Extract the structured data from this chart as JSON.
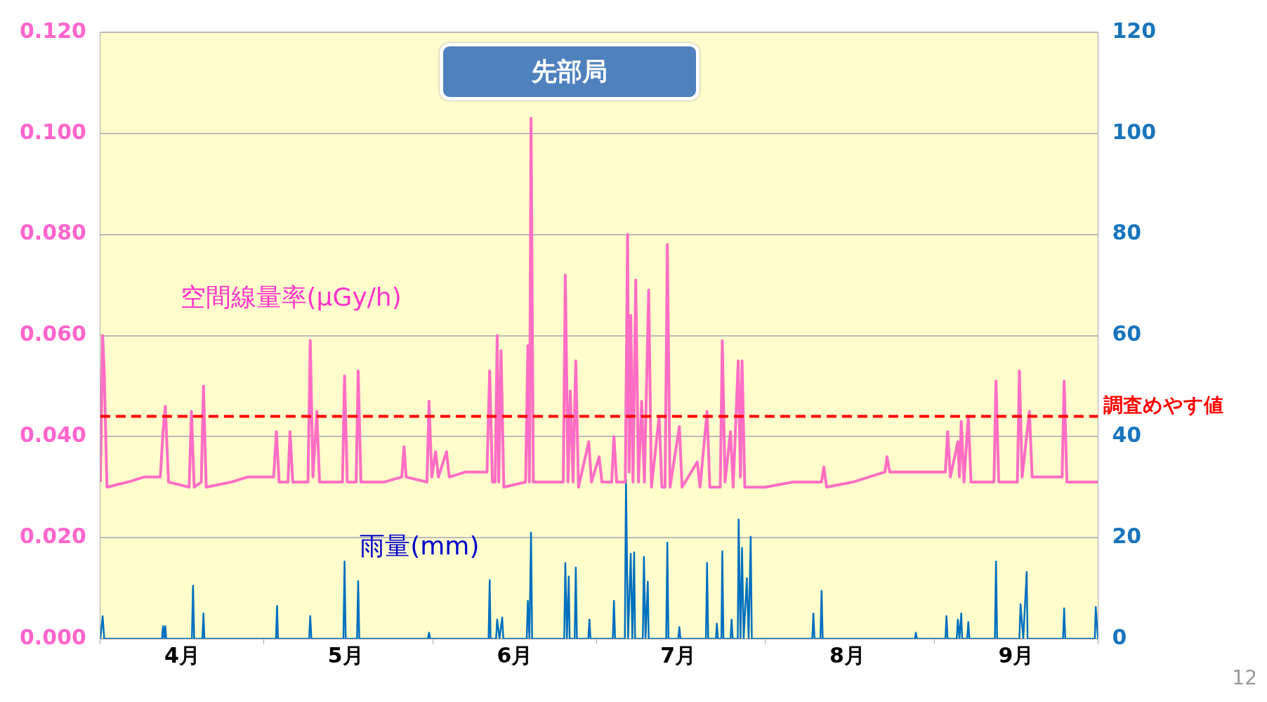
{
  "chart_data": {
    "type": "line",
    "title": "先部局",
    "xlim": [
      "--04-01",
      "--10-01"
    ],
    "xticks": [
      {
        "value": "--04-01",
        "label": null
      },
      {
        "value": "--04-16",
        "label": "4月"
      },
      {
        "value": "--05-01",
        "label": null
      },
      {
        "value": "--05-16",
        "label": "5月"
      },
      {
        "value": "--06-01",
        "label": null
      },
      {
        "value": "--06-16",
        "label": "6月"
      },
      {
        "value": "--07-01",
        "label": null
      },
      {
        "value": "--07-16",
        "label": "7月"
      },
      {
        "value": "--08-01",
        "label": null
      },
      {
        "value": "--08-16",
        "label": "8月"
      },
      {
        "value": "--09-01",
        "label": null
      },
      {
        "value": "--09-16",
        "label": "9月"
      },
      {
        "value": "--10-01",
        "label": null
      }
    ],
    "ylim": [
      0,
      0.12
    ],
    "yticks": [
      {
        "value": 0,
        "label": "0.000"
      },
      {
        "value": 0.02,
        "label": "0.020"
      },
      {
        "value": 0.04,
        "label": "0.040"
      },
      {
        "value": 0.06,
        "label": "0.060"
      },
      {
        "value": 0.08,
        "label": "0.080"
      },
      {
        "value": 0.1,
        "label": "0.100"
      },
      {
        "value": 0.12,
        "label": "0.120"
      }
    ],
    "y2lim": [
      0,
      120
    ],
    "y2ticks": [
      0,
      20,
      40,
      60,
      80,
      100,
      120
    ],
    "grid": "y",
    "legend": false,
    "marker": "none",
    "line_style": "solid",
    "series": [
      {
        "name": "空間線量率(μGy/h)",
        "color": "#ff6ec4",
        "axis": "y",
        "x": [
          "--04-01",
          "--04-01T10:00",
          "--04-01T17:00",
          "--04-02T05:00",
          "--04-06",
          "--04-09",
          "--04-12",
          "--04-12T12:00",
          "--04-12T22:00",
          "--04-13T12:00",
          "--04-17T07:00",
          "--04-17T17:00",
          "--04-18T05:00",
          "--04-19T12:00",
          "--04-19T22:00",
          "--04-20T10:00",
          "--04-25",
          "--04-28",
          "--05-02T19:00",
          "--05-03T07:00",
          "--05-03T19:00",
          "--05-05T10:00",
          "--05-05T19:00",
          "--05-06T07:00",
          "--05-09T02:00",
          "--05-09T12:00",
          "--05-10",
          "--05-10T17:00",
          "--05-11T05:00",
          "--05-15T10:00",
          "--05-15T19:00",
          "--05-16T07:00",
          "--05-17T22:00",
          "--05-18T07:00",
          "--05-18T19:00",
          "--05-23",
          "--05-26T07:00",
          "--05-26T17:00",
          "--05-27T02:00",
          "--05-30T22:00",
          "--05-31T07:00",
          "--05-31T19:00",
          "--06-01T12:00",
          "--06-02",
          "--06-03T12:00",
          "--06-04",
          "--06-07",
          "--06-10T22:00",
          "--06-11T10:00",
          "--06-11T22:00",
          "--06-12T10:00",
          "--06-12T19:00",
          "--06-13T02:00",
          "--06-13T12:00",
          "--06-14",
          "--06-18",
          "--06-18T10:00",
          "--06-18T17:00",
          "--06-19",
          "--06-19T10:00",
          "--06-24T22:00",
          "--06-25T07:00",
          "--06-25T19:00",
          "--06-26T05:00",
          "--06-26T17:00",
          "--06-27T05:00",
          "--06-27T17:00",
          "--06-29T14:00",
          "--06-30T02:00",
          "--07-01T12:00",
          "--07-02",
          "--07-03T19:00",
          "--07-04T05:00",
          "--07-04T17:00",
          "--07-06T07:00",
          "--07-06T17:00",
          "--07-07",
          "--07-07T07:00",
          "--07-07T17:00",
          "--07-08T05:00",
          "--07-08T17:00",
          "--07-09T07:00",
          "--07-09T19:00",
          "--07-10T14:00",
          "--07-11T02:00",
          "--07-12T12:00",
          "--07-13",
          "--07-13T14:00",
          "--07-14",
          "--07-14T12:00",
          "--07-16T05:00",
          "--07-16T17:00",
          "--07-19T12:00",
          "--07-20",
          "--07-21T07:00",
          "--07-21T19:00",
          "--07-23T17:00",
          "--07-24T02:00",
          "--07-24T14:00",
          "--07-25T14:00",
          "--07-26T02:00",
          "--07-27",
          "--07-27T10:00",
          "--07-27T17:00",
          "--07-28T05:00",
          "--08-01",
          "--08-06",
          "--08-11T07:00",
          "--08-11T17:00",
          "--08-12T05:00",
          "--08-17",
          "--08-22T22:00",
          "--08-23T07:00",
          "--08-23T19:00",
          "--08-29",
          "--09-03",
          "--09-03T10:00",
          "--09-03T22:00",
          "--09-05T07:00",
          "--09-05T14:00",
          "--09-05T22:00",
          "--09-06T10:00",
          "--09-07T05:00",
          "--09-07T17:00",
          "--09-11T22:00",
          "--09-12T07:00",
          "--09-12T19:00",
          "--09-16T05:00",
          "--09-16T14:00",
          "--09-17T02:00",
          "--09-18T10:00",
          "--09-18T22:00",
          "--09-24T10:00",
          "--09-24T19:00",
          "--09-25T07:00",
          "--10-01"
        ],
        "values": [
          0.031,
          0.06,
          0.053,
          0.03,
          0.031,
          0.032,
          0.032,
          0.041,
          0.046,
          0.031,
          0.03,
          0.045,
          0.03,
          0.031,
          0.05,
          0.03,
          0.031,
          0.032,
          0.032,
          0.041,
          0.031,
          0.031,
          0.041,
          0.031,
          0.031,
          0.059,
          0.032,
          0.045,
          0.031,
          0.031,
          0.052,
          0.031,
          0.031,
          0.053,
          0.031,
          0.031,
          0.032,
          0.038,
          0.032,
          0.031,
          0.047,
          0.032,
          0.037,
          0.032,
          0.037,
          0.032,
          0.033,
          0.033,
          0.053,
          0.031,
          0.031,
          0.06,
          0.031,
          0.057,
          0.03,
          0.031,
          0.058,
          0.031,
          0.103,
          0.031,
          0.031,
          0.072,
          0.031,
          0.049,
          0.031,
          0.055,
          0.03,
          0.039,
          0.031,
          0.036,
          0.031,
          0.031,
          0.04,
          0.031,
          0.031,
          0.08,
          0.033,
          0.064,
          0.031,
          0.071,
          0.031,
          0.047,
          0.031,
          0.069,
          0.03,
          0.044,
          0.03,
          0.03,
          0.078,
          0.03,
          0.042,
          0.03,
          0.035,
          0.03,
          0.045,
          0.03,
          0.03,
          0.059,
          0.031,
          0.041,
          0.03,
          0.055,
          0.032,
          0.055,
          0.03,
          0.03,
          0.031,
          0.031,
          0.034,
          0.03,
          0.031,
          0.033,
          0.036,
          0.033,
          0.033,
          0.033,
          0.041,
          0.032,
          0.039,
          0.032,
          0.043,
          0.031,
          0.044,
          0.031,
          0.031,
          0.051,
          0.031,
          0.031,
          0.053,
          0.032,
          0.045,
          0.032,
          0.032,
          0.051,
          0.031,
          0.031
        ]
      },
      {
        "name": "雨量(mm)",
        "color": "#0070c0",
        "axis": "y2",
        "x": [
          "--04-01",
          "--04-01T10:00",
          "--04-01T17:00",
          "--04-12T07:00",
          "--04-12T12:00",
          "--04-12T17:00",
          "--04-12T22:00",
          "--04-13T02:00",
          "--04-17T19:00",
          "--04-18",
          "--04-18T05:00",
          "--04-19T17:00",
          "--04-19T22:00",
          "--04-20T02:00",
          "--05-03T05:00",
          "--05-03T10:00",
          "--05-03T14:00",
          "--05-09T07:00",
          "--05-09T12:00",
          "--05-09T17:00",
          "--05-15T14:00",
          "--05-15T19:00",
          "--05-16",
          "--05-18T02:00",
          "--05-18T07:00",
          "--05-18T12:00",
          "--05-31T02:00",
          "--05-31T07:00",
          "--05-31T12:00",
          "--06-11T05:00",
          "--06-11T10:00",
          "--06-11T14:00",
          "--06-12T14:00",
          "--06-12T19:00",
          "--06-13T05:00",
          "--06-13T17:00",
          "--06-13T22:00",
          "--06-18T05:00",
          "--06-18T10:00",
          "--06-18T17:00",
          "--06-19",
          "--06-19T05:00",
          "--06-25T02:00",
          "--06-25T07:00",
          "--06-25T14:00",
          "--06-25T22:00",
          "--06-26T02:00",
          "--06-27",
          "--06-27T05:00",
          "--06-27T10:00",
          "--06-29T12:00",
          "--06-29T17:00",
          "--06-29T22:00",
          "--07-04",
          "--07-04T05:00",
          "--07-04T10:00",
          "--07-06T05:00",
          "--07-06T10:00",
          "--07-06T19:00",
          "--07-07T07:00",
          "--07-07T14:00",
          "--07-07T22:00",
          "--07-08T02:00",
          "--07-09T12:00",
          "--07-09T17:00",
          "--07-10",
          "--07-10T10:00",
          "--07-10T14:00",
          "--07-13T19:00",
          "--07-14",
          "--07-14T05:00",
          "--07-16",
          "--07-16T05:00",
          "--07-16T10:00",
          "--07-21T02:00",
          "--07-21T07:00",
          "--07-21T12:00",
          "--07-22T22:00",
          "--07-23T02:00",
          "--07-23T07:00",
          "--07-23T22:00",
          "--07-24T02:00",
          "--07-24T07:00",
          "--07-25T14:00",
          "--07-25T19:00",
          "--07-26",
          "--07-26T22:00",
          "--07-27T02:00",
          "--07-27T10:00",
          "--07-27T17:00",
          "--07-28",
          "--07-28T14:00",
          "--07-28T22:00",
          "--07-29T07:00",
          "--07-29T12:00",
          "--08-09T14:00",
          "--08-09T19:00",
          "--08-10",
          "--08-11T02:00",
          "--08-11T07:00",
          "--08-11T12:00",
          "--08-28T10:00",
          "--08-28T14:00",
          "--08-28T19:00",
          "--09-03",
          "--09-03T05:00",
          "--09-03T10:00",
          "--09-05T02:00",
          "--09-05T07:00",
          "--09-05T14:00",
          "--09-05T22:00",
          "--09-06T02:00",
          "--09-07",
          "--09-07T05:00",
          "--09-07T10:00",
          "--09-12T02:00",
          "--09-12T07:00",
          "--09-12T12:00",
          "--09-16T14:00",
          "--09-16T19:00",
          "--09-17T07:00",
          "--09-17T22:00",
          "--09-18T02:00",
          "--09-24T14:00",
          "--09-24T19:00",
          "--09-25",
          "--09-30T10:00",
          "--09-30T14:00",
          "--10-01"
        ],
        "values": [
          0,
          4.5,
          0,
          0,
          2.5,
          0,
          2.5,
          0,
          0,
          10.5,
          0,
          0,
          5,
          0,
          0,
          6.5,
          0,
          0,
          4.5,
          0,
          0,
          15.3,
          0,
          0,
          11.4,
          0,
          0,
          1.2,
          0,
          0,
          11.6,
          0,
          0,
          3.8,
          0,
          4.2,
          0,
          0,
          7.5,
          0,
          21,
          0,
          0,
          15,
          0,
          12.3,
          0,
          0,
          14.1,
          0,
          0,
          3.8,
          0,
          0,
          7.5,
          0,
          0,
          31.5,
          0,
          16.8,
          0,
          17.1,
          0,
          0,
          16.2,
          0,
          11.3,
          0,
          0,
          19,
          0,
          0,
          2.3,
          0,
          0,
          15,
          0,
          0,
          3,
          0,
          0,
          17.3,
          0,
          0,
          3.8,
          0,
          0,
          23.6,
          0,
          18,
          0,
          12,
          0,
          20.2,
          0,
          0,
          5,
          0,
          0,
          9.5,
          0,
          0,
          1.2,
          0,
          0,
          4.5,
          0,
          0,
          3.8,
          0,
          5,
          0,
          0,
          3.3,
          0,
          0,
          15.3,
          0,
          0,
          6.8,
          0,
          13.2,
          0,
          0,
          6,
          0,
          0,
          6.3,
          0
        ]
      }
    ],
    "ref_lines": [
      {
        "axis": "y",
        "value": 0.044,
        "label": "調査めやす値",
        "color": "#ff0000",
        "line_style": "dashed"
      }
    ],
    "annotations": [
      "12"
    ]
  }
}
